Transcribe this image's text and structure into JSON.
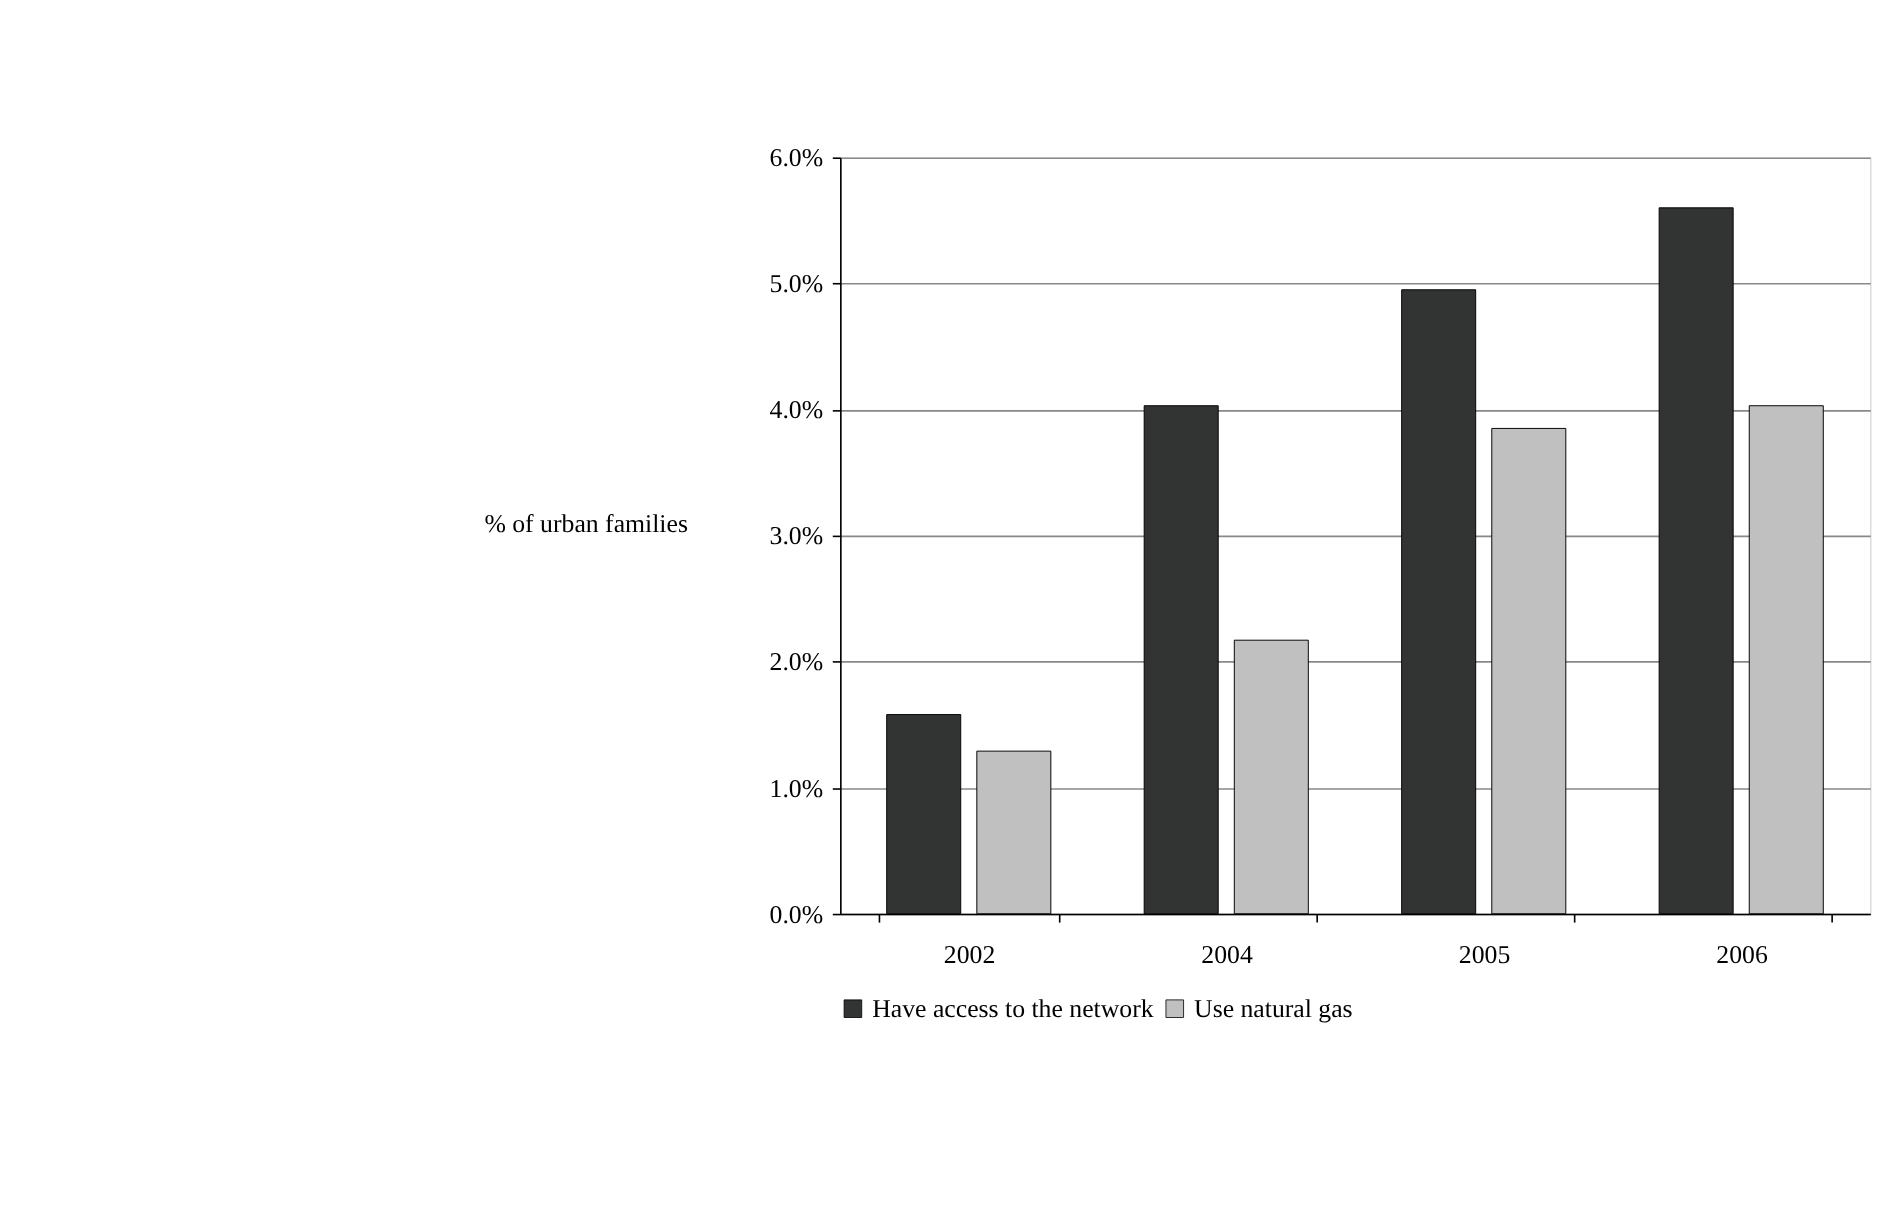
{
  "chart_data": {
    "type": "bar",
    "ylabel": "% of urban families",
    "categories": [
      "2002",
      "2004",
      "2005",
      "2006"
    ],
    "series": [
      {
        "name": "Have access to the network",
        "color": "#323433",
        "values": [
          1.58,
          4.03,
          4.95,
          5.6
        ]
      },
      {
        "name": "Use natural gas",
        "color": "#c0c0c0",
        "values": [
          1.29,
          2.17,
          3.85,
          4.03
        ]
      }
    ],
    "ylim": [
      0,
      6
    ],
    "yticks": [
      {
        "value": 0,
        "label": "0.0%"
      },
      {
        "value": 1,
        "label": "1.0%"
      },
      {
        "value": 2,
        "label": "2.0%"
      },
      {
        "value": 3,
        "label": "3.0%"
      },
      {
        "value": 4,
        "label": "4.0%"
      },
      {
        "value": 5,
        "label": "5.0%"
      },
      {
        "value": 6,
        "label": "6.0%"
      }
    ],
    "grid": "y",
    "legend": "bottom"
  }
}
